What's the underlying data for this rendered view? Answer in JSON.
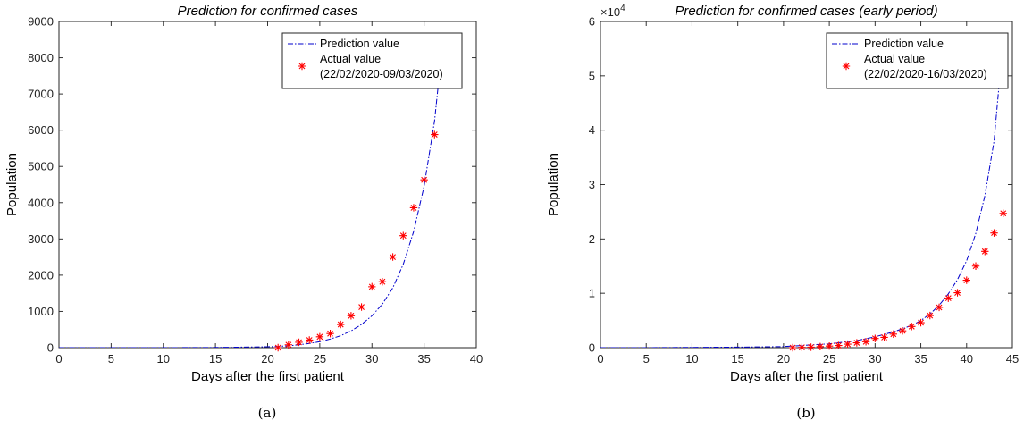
{
  "chart_data": [
    {
      "type": "line",
      "title": "Prediction for confirmed cases",
      "xlabel": "Days after the first patient",
      "ylabel": "Population",
      "xlim": [
        0,
        40
      ],
      "ylim": [
        0,
        9000
      ],
      "xticks": [
        0,
        5,
        10,
        15,
        20,
        25,
        30,
        35,
        40
      ],
      "yticks": [
        0,
        1000,
        2000,
        3000,
        4000,
        5000,
        6000,
        7000,
        8000,
        9000
      ],
      "ytick_labels": [
        "0",
        "1000",
        "2000",
        "3000",
        "4000",
        "5000",
        "6000",
        "7000",
        "8000",
        "9000"
      ],
      "legend_placement": "top-right",
      "caption": "(a)",
      "series": [
        {
          "name": "Prediction value",
          "style": "dash-dot line",
          "color": "#0000cc",
          "x": [
            0,
            5,
            10,
            15,
            20,
            21,
            22,
            23,
            24,
            25,
            26,
            27,
            28,
            29,
            30,
            31,
            32,
            33,
            34,
            35,
            36,
            36.7
          ],
          "y": [
            0,
            0,
            1,
            5,
            25,
            35,
            55,
            80,
            115,
            165,
            240,
            330,
            460,
            640,
            880,
            1200,
            1650,
            2300,
            3200,
            4450,
            6250,
            8200
          ]
        },
        {
          "name": "Actual value",
          "name_line2": "(22/02/2020-09/03/2020)",
          "style": "asterisk markers",
          "color": "#ff0000",
          "x": [
            21,
            22,
            23,
            24,
            25,
            26,
            27,
            28,
            29,
            30,
            31,
            32,
            33,
            34,
            35,
            36
          ],
          "y": [
            0,
            80,
            150,
            210,
            300,
            390,
            640,
            880,
            1120,
            1680,
            1820,
            2500,
            3090,
            3860,
            4630,
            5880
          ]
        }
      ]
    },
    {
      "type": "line",
      "title": "Prediction for confirmed cases (early period)",
      "xlabel": "Days after the first patient",
      "ylabel": "Population",
      "xlim": [
        0,
        45
      ],
      "ylim": [
        0,
        60000
      ],
      "xticks": [
        0,
        5,
        10,
        15,
        20,
        25,
        30,
        35,
        40,
        45
      ],
      "yticks": [
        0,
        10000,
        20000,
        30000,
        40000,
        50000,
        60000
      ],
      "ytick_labels": [
        "0",
        "1",
        "2",
        "3",
        "4",
        "5",
        "6"
      ],
      "y_exponent": "×10",
      "y_exponent_power": "4",
      "legend_placement": "top-right",
      "caption": "(b)",
      "series": [
        {
          "name": "Prediction value",
          "style": "dash-dot line",
          "color": "#0000cc",
          "x": [
            0,
            5,
            10,
            15,
            20,
            25,
            28,
            30,
            32,
            34,
            35,
            36,
            37,
            38,
            39,
            40,
            41,
            42,
            43,
            44
          ],
          "y": [
            0,
            0,
            50,
            100,
            200,
            700,
            1300,
            2000,
            2900,
            4100,
            5000,
            6200,
            7800,
            9900,
            12500,
            16000,
            21000,
            28000,
            38000,
            57000
          ]
        },
        {
          "name": "Actual value",
          "name_line2": "(22/02/2020-16/03/2020)",
          "style": "asterisk markers",
          "color": "#ff0000",
          "x": [
            21,
            22,
            23,
            24,
            25,
            26,
            27,
            28,
            29,
            30,
            31,
            32,
            33,
            34,
            35,
            36,
            37,
            38,
            39,
            40,
            41,
            42,
            43,
            44
          ],
          "y": [
            0,
            50,
            100,
            200,
            300,
            400,
            650,
            900,
            1100,
            1700,
            1900,
            2500,
            3100,
            3900,
            4600,
            5900,
            7400,
            9100,
            10100,
            12400,
            15000,
            17700,
            21100,
            24700
          ]
        }
      ]
    }
  ]
}
